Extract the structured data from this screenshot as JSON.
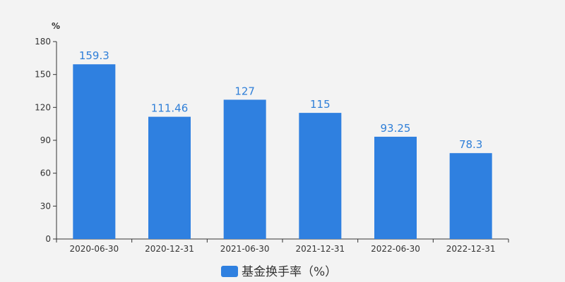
{
  "chart_data": {
    "type": "bar",
    "categories": [
      "2020-06-30",
      "2020-12-31",
      "2021-06-30",
      "2021-12-31",
      "2022-06-30",
      "2022-12-31"
    ],
    "values": [
      159.3,
      111.46,
      127,
      115,
      93.25,
      78.3
    ],
    "value_labels": [
      "159.3",
      "111.46",
      "127",
      "115",
      "93.25",
      "78.3"
    ],
    "series": [
      {
        "name": "基金换手率（%）",
        "values": [
          159.3,
          111.46,
          127,
          115,
          93.25,
          78.3
        ]
      }
    ],
    "ylabel": "%",
    "ylim": [
      0,
      180
    ],
    "yticks": [
      0,
      30,
      60,
      90,
      120,
      150,
      180
    ],
    "grid": false,
    "legend": "bottom-center",
    "bar_color": "#2f80e0",
    "label_color": "#2f7fd8"
  }
}
